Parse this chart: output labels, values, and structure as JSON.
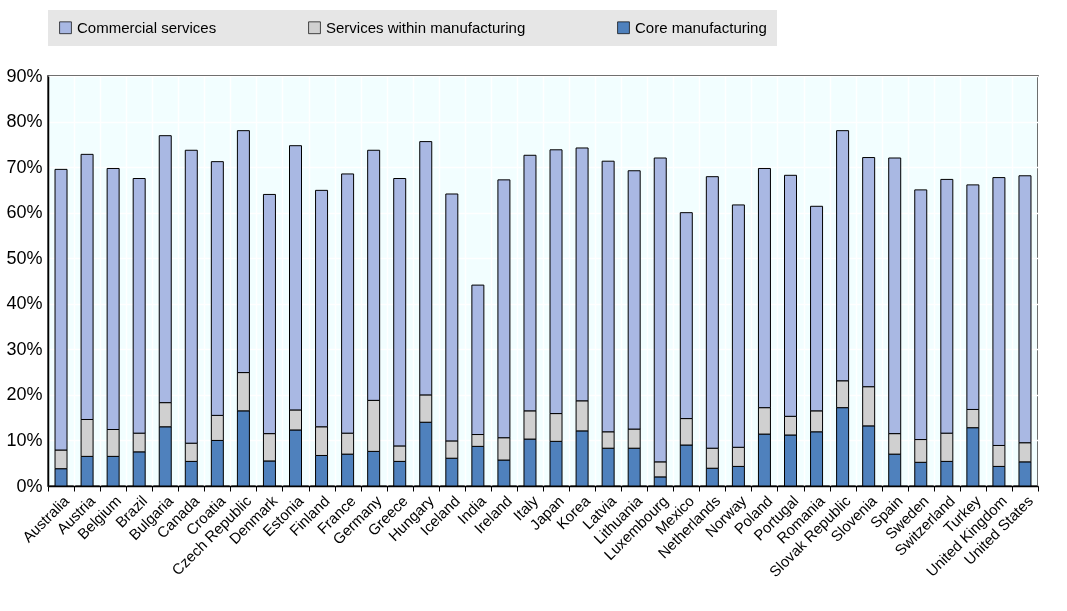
{
  "chart_data": {
    "type": "bar",
    "stacked": true,
    "legend": "top",
    "grid": true,
    "categories": [
      "Australia",
      "Austria",
      "Belgium",
      "Brazil",
      "Bulgaria",
      "Canada",
      "Croatia",
      "Czech Republic",
      "Denmark",
      "Estonia",
      "Finland",
      "France",
      "Germany",
      "Greece",
      "Hungary",
      "Iceland",
      "India",
      "Ireland",
      "Italy",
      "Japan",
      "Korea",
      "Latvia",
      "Lithuania",
      "Luxembourg",
      "Mexico",
      "Netherlands",
      "Norway",
      "Poland",
      "Portugal",
      "Romania",
      "Slovak Republic",
      "Slovenia",
      "Spain",
      "Sweden",
      "Switzerland",
      "Turkey",
      "United Kingdom",
      "United States"
    ],
    "series": [
      {
        "name": "Core manufacturing",
        "color": "#4f81bd",
        "values": [
          3.8,
          6.5,
          6.5,
          7.5,
          13.0,
          5.4,
          10.0,
          16.5,
          5.5,
          12.3,
          6.7,
          7.0,
          7.6,
          5.4,
          14.0,
          6.1,
          8.7,
          5.7,
          10.3,
          9.8,
          12.1,
          8.3,
          8.3,
          2.0,
          9.0,
          3.9,
          4.3,
          11.4,
          11.2,
          11.9,
          17.2,
          13.2,
          7.0,
          5.2,
          5.4,
          12.8,
          4.3,
          5.3
        ]
      },
      {
        "name": "Services within manufacturing",
        "color": "#d0d0d0",
        "values": [
          4.1,
          8.1,
          5.9,
          4.1,
          5.3,
          4.0,
          5.5,
          8.4,
          6.0,
          4.4,
          6.3,
          4.6,
          11.2,
          3.4,
          6.0,
          3.8,
          2.6,
          4.9,
          6.2,
          6.1,
          6.6,
          3.6,
          4.2,
          3.3,
          5.8,
          4.4,
          4.2,
          5.8,
          4.1,
          4.6,
          5.9,
          8.6,
          4.5,
          5.0,
          6.2,
          4.0,
          4.6,
          4.2
        ]
      },
      {
        "name": "Commercial services",
        "color": "#a9b8e3",
        "values": [
          61.6,
          58.2,
          57.3,
          55.9,
          58.6,
          64.3,
          55.7,
          53.1,
          52.5,
          58.0,
          51.9,
          56.9,
          54.9,
          58.7,
          55.6,
          54.2,
          32.8,
          56.6,
          56.1,
          57.9,
          55.5,
          59.4,
          56.7,
          66.7,
          45.2,
          59.6,
          53.2,
          52.5,
          52.9,
          44.9,
          54.9,
          50.3,
          60.5,
          54.8,
          55.7,
          49.3,
          58.8,
          58.6
        ]
      }
    ],
    "ylim": [
      0,
      90
    ],
    "yticks": [
      {
        "value": 0,
        "label": "0%"
      },
      {
        "value": 10,
        "label": "10%"
      },
      {
        "value": 20,
        "label": "20%"
      },
      {
        "value": 30,
        "label": "30%"
      },
      {
        "value": 40,
        "label": "40%"
      },
      {
        "value": 50,
        "label": "50%"
      },
      {
        "value": 60,
        "label": "60%"
      },
      {
        "value": 70,
        "label": "70%"
      },
      {
        "value": 80,
        "label": "80%"
      },
      {
        "value": 90,
        "label": "90%"
      }
    ]
  }
}
